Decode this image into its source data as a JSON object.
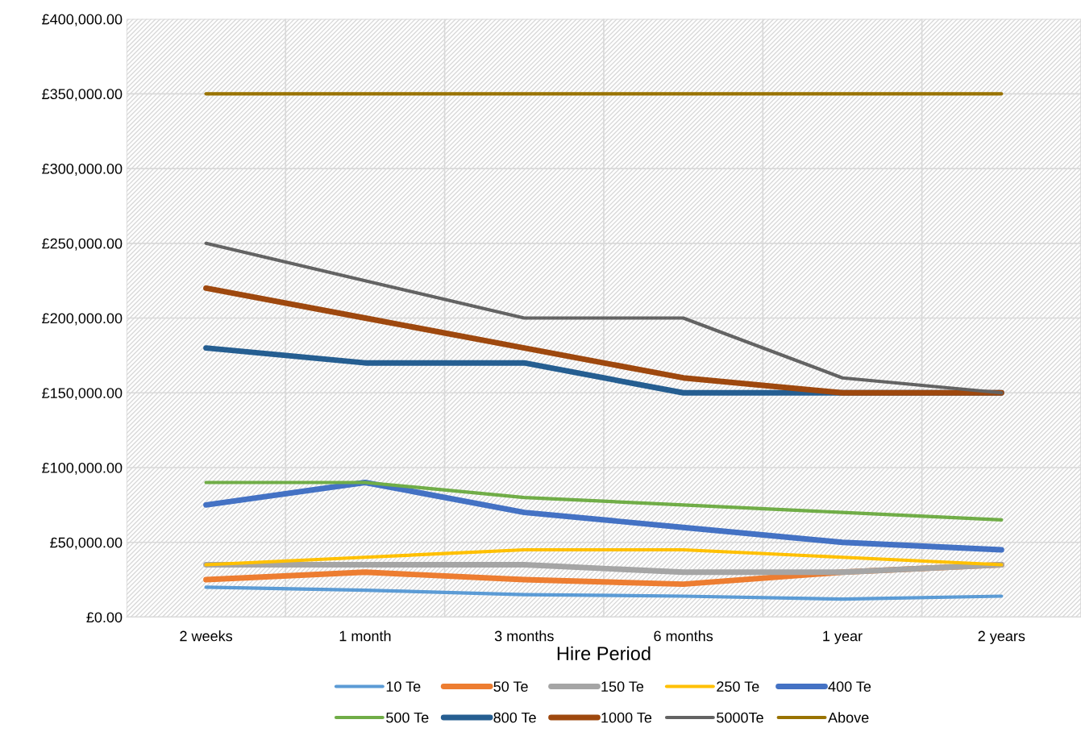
{
  "chart_data": {
    "type": "line",
    "xlabel": "Hire Period",
    "categories": [
      "2 weeks",
      "1 month",
      "3 months",
      "6 months",
      "1 year",
      "2 years"
    ],
    "series": [
      {
        "name": "10 Te",
        "color": "#5b9bd5",
        "values": [
          20000,
          18000,
          15000,
          14000,
          12000,
          14000
        ]
      },
      {
        "name": "50 Te",
        "color": "#ed7d31",
        "values": [
          25000,
          30000,
          25000,
          22000,
          30000,
          35000
        ]
      },
      {
        "name": "150 Te",
        "color": "#a5a5a5",
        "values": [
          35000,
          35000,
          35000,
          30000,
          30000,
          35000
        ]
      },
      {
        "name": "250 Te",
        "color": "#ffc000",
        "values": [
          35000,
          40000,
          45000,
          45000,
          40000,
          35000
        ]
      },
      {
        "name": "400 Te",
        "color": "#4472c4",
        "values": [
          75000,
          90000,
          70000,
          60000,
          50000,
          45000
        ]
      },
      {
        "name": "500 Te",
        "color": "#70ad47",
        "values": [
          90000,
          90000,
          80000,
          75000,
          70000,
          65000
        ]
      },
      {
        "name": "800 Te",
        "color": "#255e91",
        "values": [
          180000,
          170000,
          170000,
          150000,
          150000,
          150000
        ]
      },
      {
        "name": "1000 Te",
        "color": "#9e480e",
        "values": [
          220000,
          200000,
          180000,
          160000,
          150000,
          150000
        ]
      },
      {
        "name": "5000Te",
        "color": "#636363",
        "values": [
          250000,
          225000,
          200000,
          200000,
          160000,
          150000
        ]
      },
      {
        "name": "Above",
        "color": "#997300",
        "values": [
          350000,
          350000,
          350000,
          350000,
          350000,
          350000
        ]
      }
    ],
    "ylim": [
      0,
      400000
    ],
    "yticks": [
      {
        "value": 0,
        "label": "£0.00"
      },
      {
        "value": 50000,
        "label": "£50,000.00"
      },
      {
        "value": 100000,
        "label": "£100,000.00"
      },
      {
        "value": 150000,
        "label": "£150,000.00"
      },
      {
        "value": 200000,
        "label": "£200,000.00"
      },
      {
        "value": 250000,
        "label": "£250,000.00"
      },
      {
        "value": 300000,
        "label": "£300,000.00"
      },
      {
        "value": 350000,
        "label": "£350,000.00"
      },
      {
        "value": 400000,
        "label": "£400,000.00"
      }
    ],
    "grid": true,
    "legend": "bottom",
    "marker": "none",
    "line_style": "solid"
  }
}
